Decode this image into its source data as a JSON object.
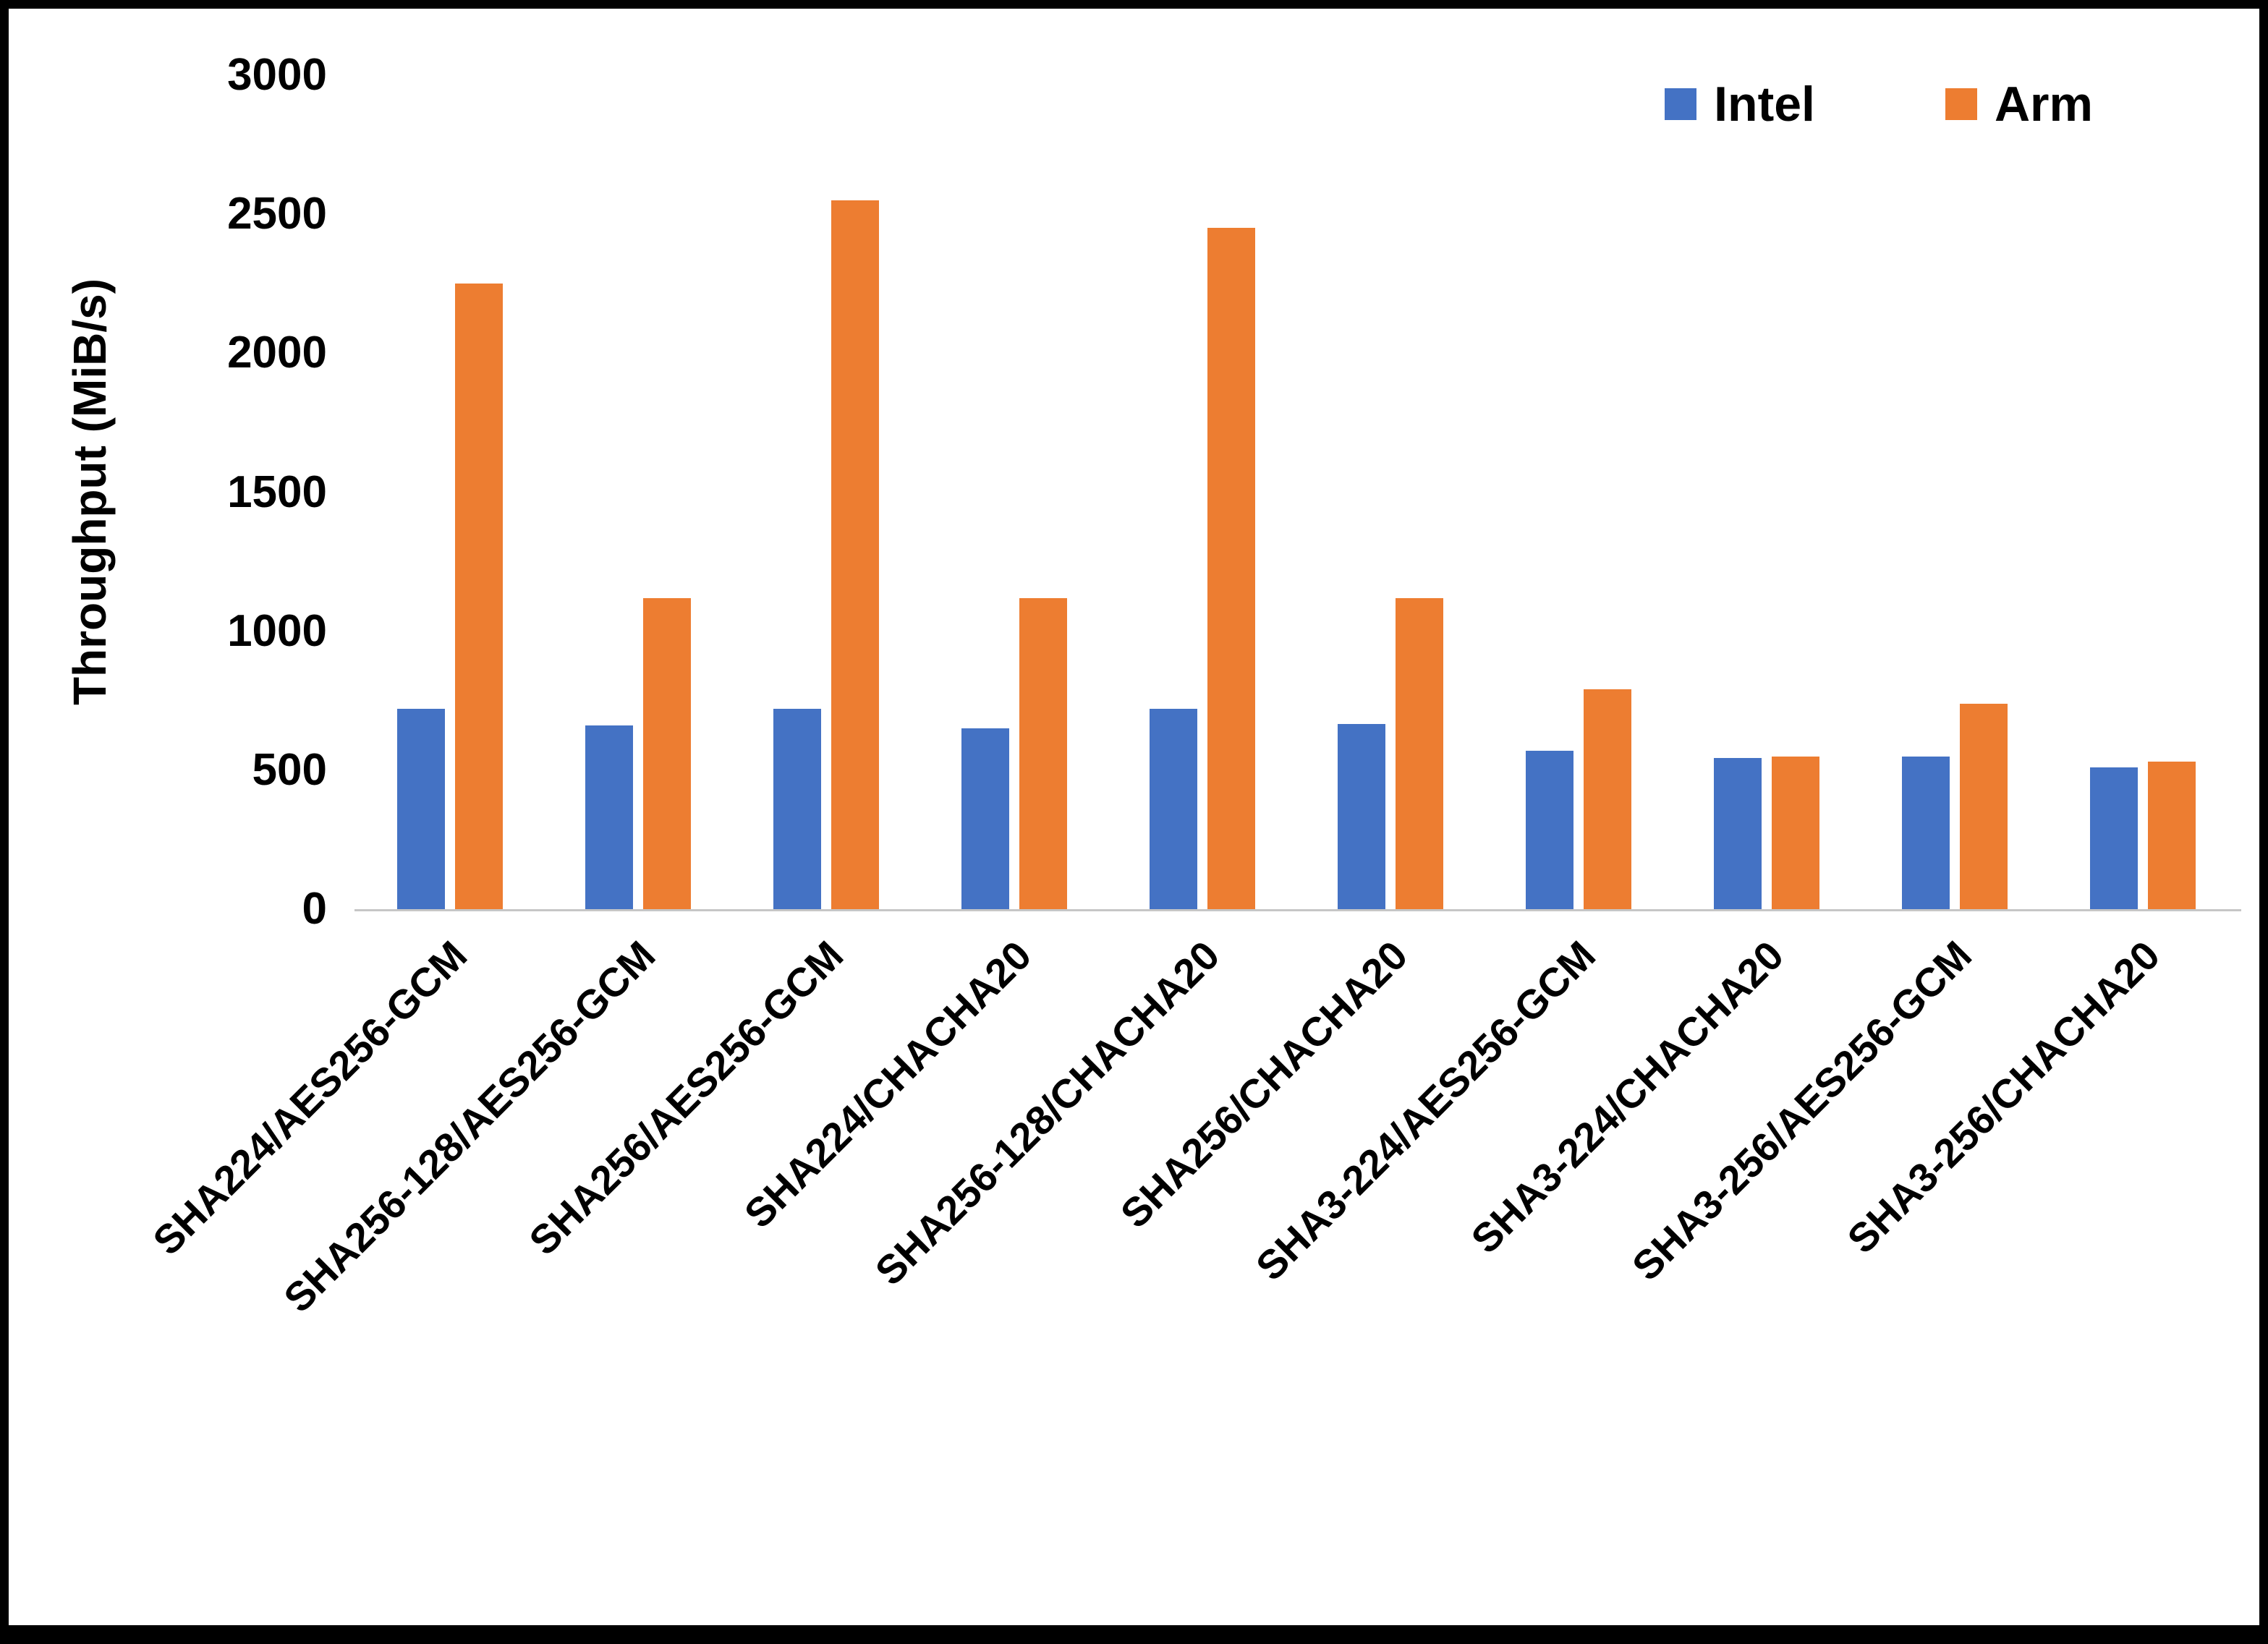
{
  "chart_data": {
    "type": "bar",
    "title": "",
    "xlabel": "",
    "ylabel": "Throughput (MiB/s)",
    "ylim": [
      0,
      3000
    ],
    "yticks": [
      0,
      500,
      1000,
      1500,
      2000,
      2500,
      3000
    ],
    "grid": false,
    "legend_position": "top-right",
    "categories": [
      "SHA224/AES256-GCM",
      "SHA256-128/AES256-GCM",
      "SHA256/AES256-GCM",
      "SHA224/CHACHA20",
      "SHA256-128/CHACHA20",
      "SHA256/CHACHA20",
      "SHA3-224/AES256-GCM",
      "SHA3-224/CHACHA20",
      "SHA3-256/AES256-GCM",
      "SHA3-256/CHACHA20"
    ],
    "series": [
      {
        "name": "Intel",
        "color": "#4472C4",
        "values": [
          720,
          660,
          720,
          650,
          720,
          665,
          570,
          545,
          550,
          510
        ]
      },
      {
        "name": "Arm",
        "color": "#ED7D31",
        "values": [
          2250,
          1120,
          2550,
          1120,
          2450,
          1120,
          790,
          550,
          740,
          530
        ]
      }
    ]
  }
}
